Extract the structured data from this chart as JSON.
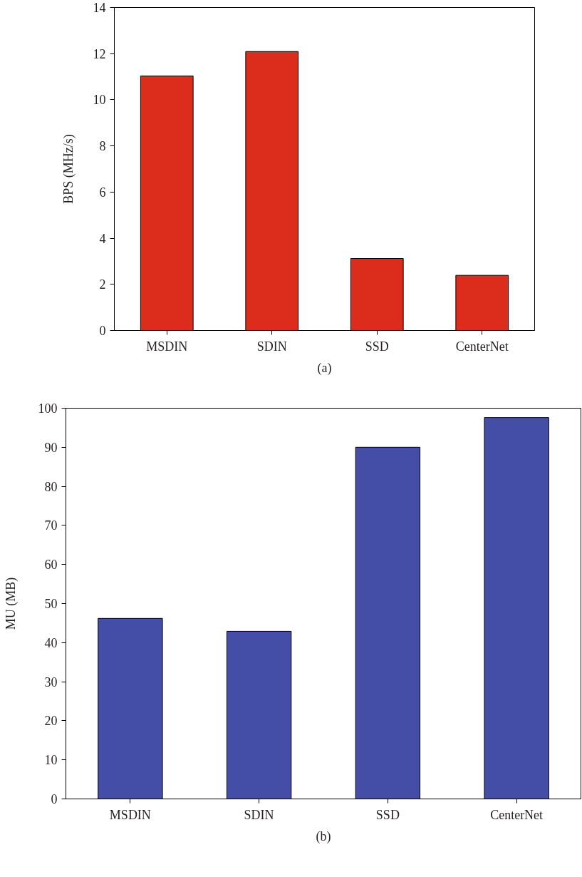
{
  "chart_data": [
    {
      "type": "bar",
      "title": "(a)",
      "ylabel": "BPS (MHz/s)",
      "categories": [
        "MSDIN",
        "SDIN",
        "SSD",
        "CenterNet"
      ],
      "values": [
        11.03,
        12.09,
        3.12,
        2.39
      ],
      "color": "#dc2c1b",
      "ylim": [
        0,
        14
      ],
      "yticks": [
        0,
        2,
        4,
        6,
        8,
        10,
        12,
        14
      ]
    },
    {
      "type": "bar",
      "title": "(b)",
      "ylabel": "MU (MB)",
      "categories": [
        "MSDIN",
        "SDIN",
        "SSD",
        "CenterNet"
      ],
      "values": [
        46.2,
        42.9,
        90.0,
        97.6
      ],
      "color": "#454ea6",
      "ylim": [
        0,
        100
      ],
      "yticks": [
        0,
        10,
        20,
        30,
        40,
        50,
        60,
        70,
        80,
        90,
        100
      ]
    }
  ]
}
